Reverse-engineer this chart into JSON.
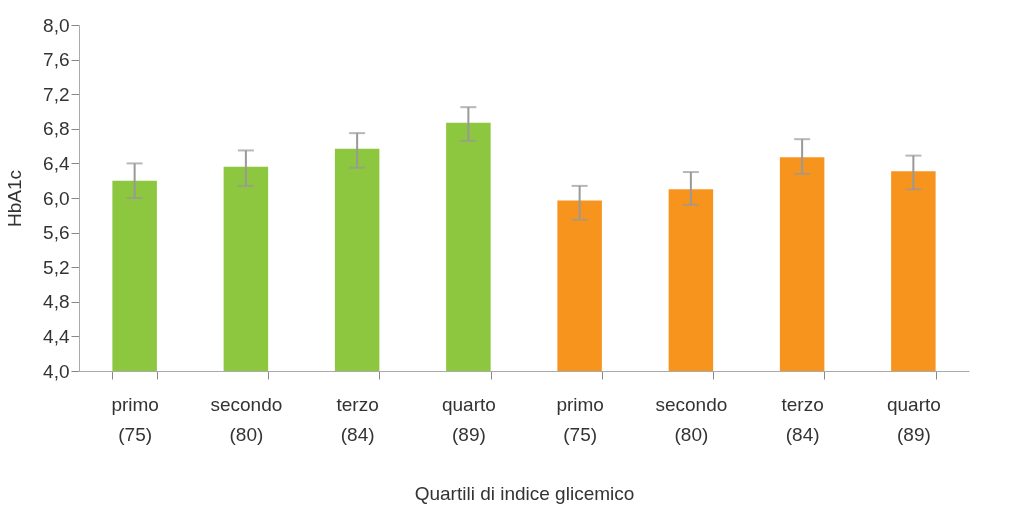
{
  "chart_data": {
    "type": "bar",
    "xlabel": "Quartili di indice glicemico",
    "ylabel": "HbA1c",
    "categories": [
      "primo (75)",
      "secondo (80)",
      "terzo (84)",
      "quarto (89)",
      "primo (75)",
      "secondo (80)",
      "terzo (84)",
      "quarto (89)"
    ],
    "values": [
      6.2,
      6.36,
      6.57,
      6.87,
      5.97,
      6.1,
      6.47,
      6.31
    ],
    "errors": [
      [
        6.0,
        6.4
      ],
      [
        6.14,
        6.55
      ],
      [
        6.35,
        6.75
      ],
      [
        6.66,
        7.05
      ],
      [
        5.75,
        6.14
      ],
      [
        5.92,
        6.3
      ],
      [
        6.28,
        6.68
      ],
      [
        6.1,
        6.49
      ]
    ],
    "colors": [
      "#8dc63f",
      "#8dc63f",
      "#8dc63f",
      "#8dc63f",
      "#f7941d",
      "#f7941d",
      "#f7941d",
      "#f7941d"
    ],
    "ylim": [
      4.0,
      8.0
    ],
    "yticks": [
      {
        "value": 4.0,
        "label": "4,0"
      },
      {
        "value": 4.4,
        "label": "4,4"
      },
      {
        "value": 4.8,
        "label": "4,8"
      },
      {
        "value": 5.2,
        "label": "5,2"
      },
      {
        "value": 5.6,
        "label": "5,6"
      },
      {
        "value": 6.0,
        "label": "6,0"
      },
      {
        "value": 6.4,
        "label": "6,4"
      },
      {
        "value": 6.8,
        "label": "6,8"
      },
      {
        "value": 7.2,
        "label": "7,2"
      },
      {
        "value": 7.6,
        "label": "7,6"
      },
      {
        "value": 8.0,
        "label": "8,0"
      }
    ],
    "grid": false
  }
}
